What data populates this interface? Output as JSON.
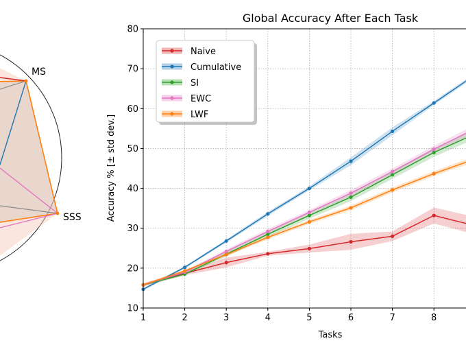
{
  "chart_data": [
    {
      "type": "radar",
      "vertex_labels": [
        "MS",
        "SSS"
      ],
      "visible_series_colors": [
        "#d62728",
        "#1f77b4",
        "#2ca02c",
        "#e377c2",
        "#ff7f0e",
        "#8c8c8c"
      ]
    },
    {
      "type": "line",
      "title": "Global Accuracy After Each Task",
      "xlabel": "Tasks",
      "ylabel": "Accuracy % [± std dev.]",
      "xlim": [
        1,
        9
      ],
      "ylim": [
        10,
        80
      ],
      "xticks": [
        1,
        2,
        3,
        4,
        5,
        6,
        7,
        8
      ],
      "yticks": [
        10,
        20,
        30,
        40,
        50,
        60,
        70,
        80
      ],
      "grid": true,
      "legend_position": "top-left",
      "series": [
        {
          "name": "Naive",
          "color": "#d62728",
          "x": [
            1,
            2,
            3,
            4,
            5,
            6,
            7,
            8,
            9
          ],
          "values": [
            15.8,
            18.7,
            21.4,
            23.6,
            24.9,
            26.6,
            28.0,
            33.2,
            30.6
          ],
          "std": [
            0.4,
            0.5,
            1.2,
            0.5,
            1.0,
            2.0,
            1.2,
            2.0,
            2.2
          ]
        },
        {
          "name": "Cumulative",
          "color": "#1f77b4",
          "x": [
            1,
            2,
            3,
            4,
            5,
            6,
            7,
            8,
            9
          ],
          "values": [
            14.7,
            20.2,
            26.8,
            33.6,
            40.0,
            46.8,
            54.3,
            61.4,
            68.5
          ],
          "std": [
            0.3,
            0.3,
            0.4,
            0.5,
            0.5,
            1.0,
            1.0,
            0.5,
            0.5
          ]
        },
        {
          "name": "SI",
          "color": "#2ca02c",
          "x": [
            1,
            2,
            3,
            4,
            5,
            6,
            7,
            8,
            9
          ],
          "values": [
            15.8,
            18.5,
            23.5,
            28.5,
            33.2,
            37.8,
            43.4,
            49.0,
            53.7
          ],
          "std": [
            0.3,
            0.3,
            0.6,
            0.7,
            0.8,
            1.0,
            1.0,
            1.1,
            1.2
          ]
        },
        {
          "name": "EWC",
          "color": "#e377c2",
          "x": [
            1,
            2,
            3,
            4,
            5,
            6,
            7,
            8,
            9
          ],
          "values": [
            15.8,
            19.0,
            24.2,
            29.2,
            34.0,
            38.8,
            44.2,
            49.8,
            55.0
          ],
          "std": [
            0.3,
            0.3,
            0.5,
            0.6,
            0.6,
            0.8,
            0.8,
            0.9,
            1.0
          ]
        },
        {
          "name": "LWF",
          "color": "#ff7f0e",
          "x": [
            1,
            2,
            3,
            4,
            5,
            6,
            7,
            8,
            9
          ],
          "values": [
            15.8,
            19.3,
            23.4,
            27.7,
            31.6,
            35.1,
            39.6,
            43.7,
            47.4
          ],
          "std": [
            0.3,
            0.3,
            0.4,
            0.5,
            0.5,
            0.6,
            0.6,
            0.6,
            0.7
          ]
        }
      ]
    }
  ]
}
